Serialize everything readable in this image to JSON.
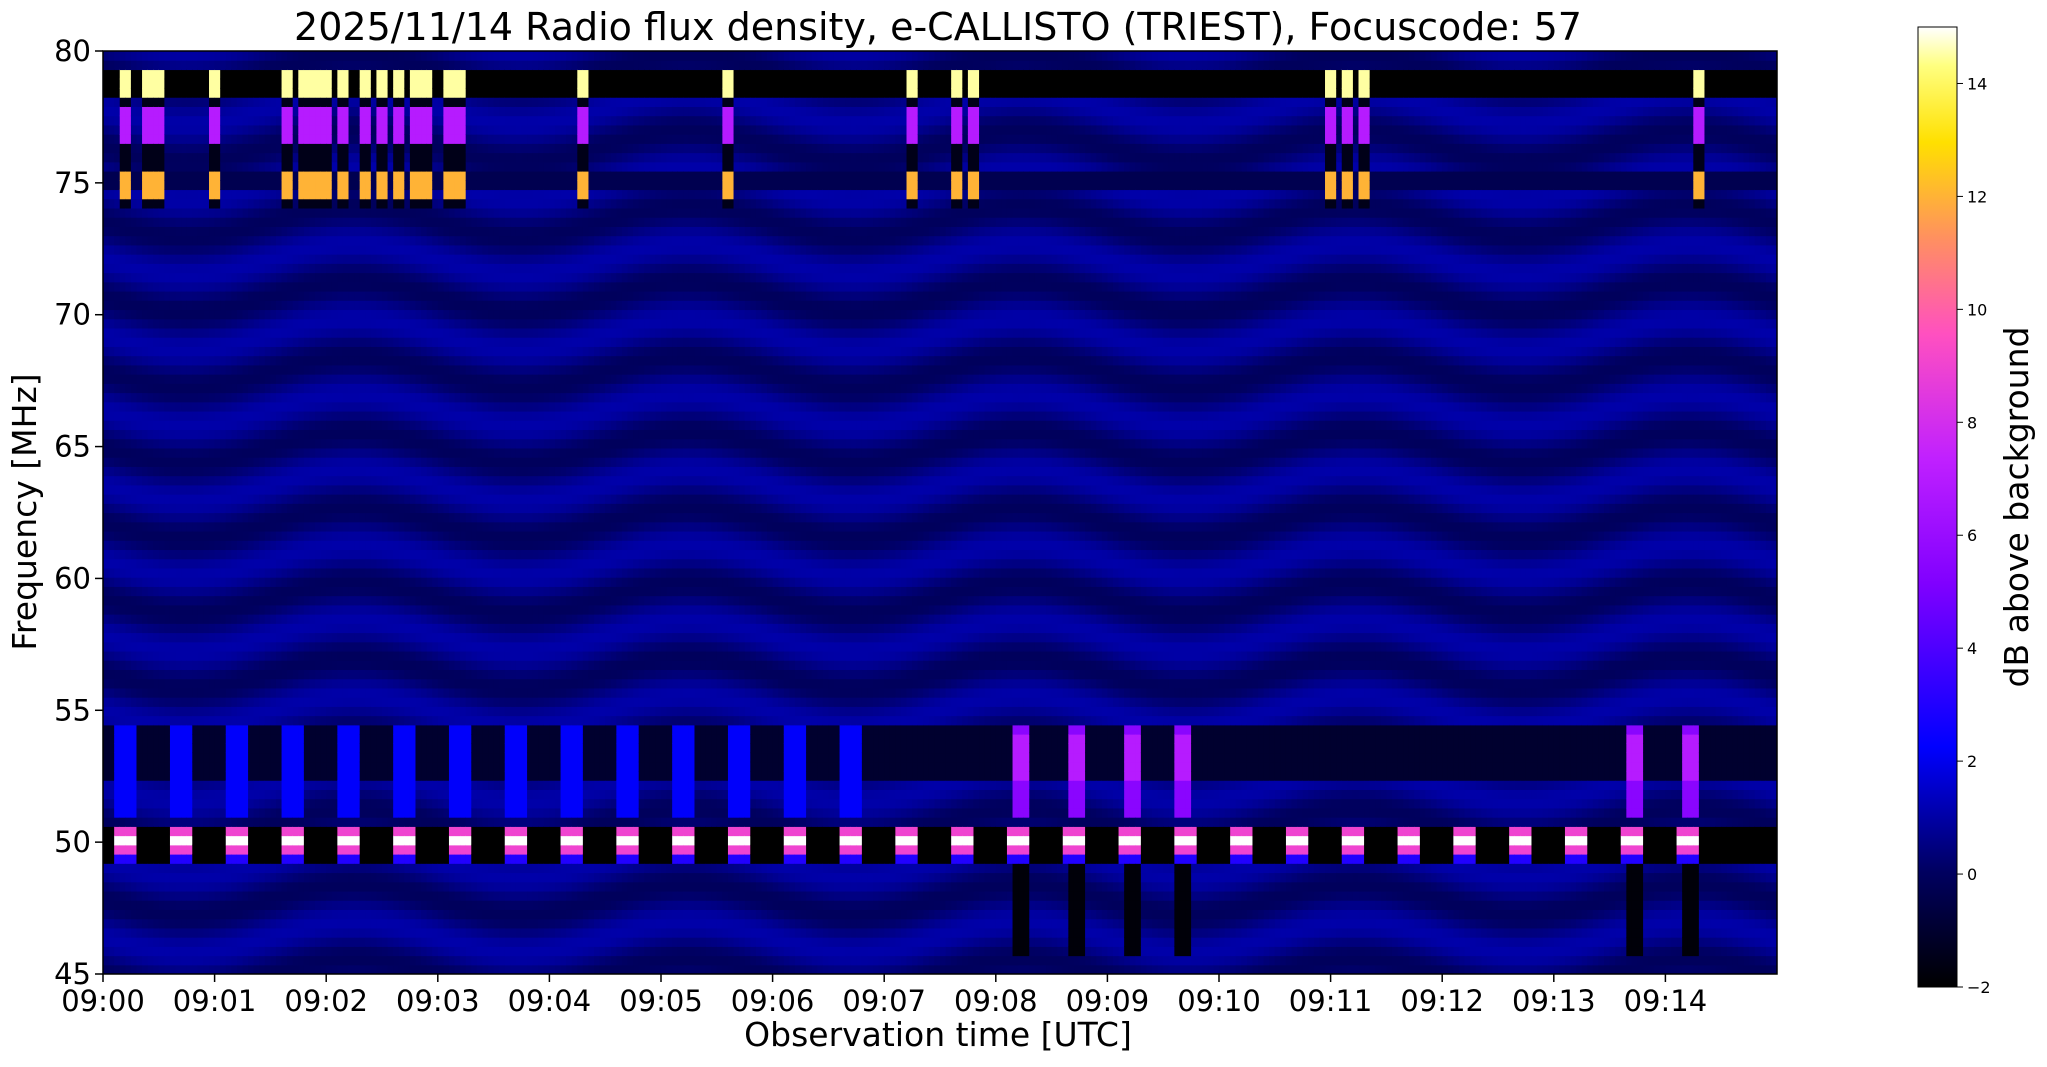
{
  "chart_data": {
    "type": "heatmap",
    "title": "2025/11/14  Radio flux density, e-CALLISTO (TRIEST), Focuscode: 57",
    "xlabel": "Observation time [UTC]",
    "ylabel": "Frequency [MHz]",
    "x_tick_labels": [
      "09:00",
      "09:01",
      "09:02",
      "09:03",
      "09:04",
      "09:05",
      "09:06",
      "09:07",
      "09:08",
      "09:09",
      "09:10",
      "09:11",
      "09:12",
      "09:13",
      "09:14"
    ],
    "x_range_minutes": [
      0,
      15
    ],
    "ylim": [
      45,
      80
    ],
    "y_ticks": [
      45,
      50,
      55,
      60,
      65,
      70,
      75,
      80
    ],
    "colorbar": {
      "label": "dB above background",
      "range": [
        -2,
        15
      ],
      "ticks": [
        -2,
        0,
        2,
        4,
        6,
        8,
        10,
        12,
        14
      ],
      "colormap": "gnuplot2"
    },
    "background_level_db": 0.5,
    "features": {
      "dark_bands_mhz": [
        [
          78.3,
          79.2
        ],
        [
          49.3,
          50.7
        ],
        [
          52.3,
          54.4
        ]
      ],
      "top_burst_times_min": [
        0.22,
        0.38,
        0.52,
        1.02,
        1.65,
        1.78,
        1.9,
        2.02,
        2.15,
        2.35,
        2.5,
        2.65,
        2.78,
        2.92,
        3.1,
        3.18,
        4.28,
        5.6,
        7.25,
        7.65,
        7.78,
        11.0,
        11.15,
        11.28,
        14.32
      ],
      "band_50_pulse_times_min": [
        0.22,
        0.72,
        1.22,
        1.72,
        2.22,
        2.72,
        3.22,
        3.72,
        4.22,
        4.72,
        5.22,
        5.72,
        6.22,
        6.72,
        7.22,
        7.72,
        8.22,
        8.72,
        9.22,
        9.72,
        10.22,
        10.72,
        11.22,
        11.72,
        12.22,
        12.72,
        13.22,
        13.72,
        14.22
      ],
      "magenta_burst_times_min": [
        8.22,
        8.72,
        9.22,
        9.68,
        13.72,
        14.22
      ]
    }
  }
}
